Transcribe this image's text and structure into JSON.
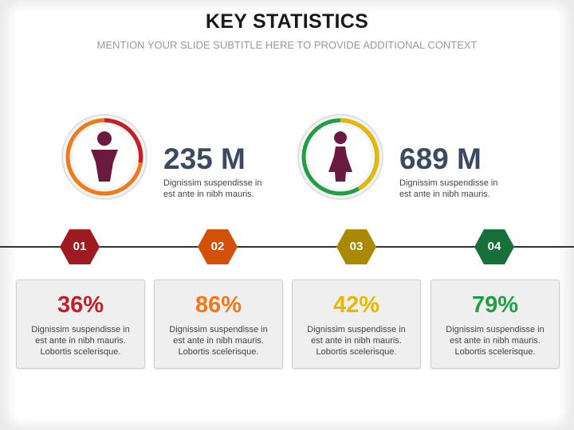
{
  "header": {
    "title": "KEY STATISTICS",
    "subtitle": "MENTION YOUR SLIDE SUBTITLE HERE TO PROVIDE ADDITIONAL CONTEXT"
  },
  "stats": [
    {
      "icon": "male-person-icon",
      "value": "235 M",
      "desc_line1": "Dignissim suspendisse in",
      "desc_line2": "est ante in nibh mauris.",
      "ring_colors": [
        "#c0202a",
        "#f07a1a"
      ]
    },
    {
      "icon": "female-person-icon",
      "value": "689 M",
      "desc_line1": "Dignissim suspendisse in",
      "desc_line2": "est ante in nibh mauris.",
      "ring_colors": [
        "#e8b800",
        "#1f9e46"
      ]
    }
  ],
  "steps": [
    {
      "number": "01",
      "color": "#9e1b22",
      "value": "36%",
      "value_color": "#c0202a",
      "desc_line1": "Dignissim suspendisse in",
      "desc_line2": "est ante in nibh mauris.",
      "desc_line3": "Lobortis scelerisque."
    },
    {
      "number": "02",
      "color": "#d4500a",
      "value": "86%",
      "value_color": "#f07a1a",
      "desc_line1": "Dignissim suspendisse in",
      "desc_line2": "est ante in nibh mauris.",
      "desc_line3": "Lobortis scelerisque."
    },
    {
      "number": "03",
      "color": "#a88900",
      "value": "42%",
      "value_color": "#e8b800",
      "desc_line1": "Dignissim suspendisse in",
      "desc_line2": "est ante in nibh mauris.",
      "desc_line3": "Lobortis scelerisque."
    },
    {
      "number": "04",
      "color": "#17703a",
      "value": "79%",
      "value_color": "#1f9e46",
      "desc_line1": "Dignissim suspendisse in",
      "desc_line2": "est ante in nibh mauris.",
      "desc_line3": "Lobortis scelerisque."
    }
  ],
  "colors": {
    "icon_fill": "#6b1a3f",
    "timeline": "#333333",
    "stat_value": "#3b4a5e"
  }
}
